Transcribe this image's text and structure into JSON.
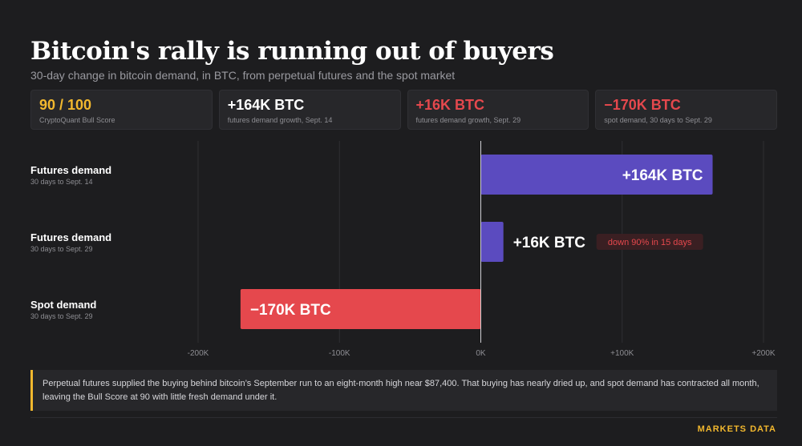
{
  "header": {
    "title": "Bitcoin's rally is running out of buyers",
    "subtitle": "30-day change in bitcoin demand, in BTC, from perpetual futures and the spot market"
  },
  "kpis": [
    {
      "value": "90 / 100",
      "label": "CryptoQuant Bull Score",
      "color": "#f2b82e"
    },
    {
      "value": "+164K BTC",
      "label": "futures demand growth, Sept. 14",
      "color": "#ffffff"
    },
    {
      "value": "+16K BTC",
      "label": "futures demand growth, Sept. 29",
      "color": "#e5484d"
    },
    {
      "value": "−170K BTC",
      "label": "spot demand, 30 days to Sept. 29",
      "color": "#e5484d"
    }
  ],
  "chart_data": {
    "type": "bar",
    "orientation": "horizontal",
    "categories": [
      {
        "name": "Futures demand",
        "sub": "30 days to Sept. 14"
      },
      {
        "name": "Futures demand",
        "sub": "30 days to Sept. 29"
      },
      {
        "name": "Spot demand",
        "sub": "30 days to Sept. 29"
      }
    ],
    "values": [
      164000,
      16000,
      -170000
    ],
    "value_labels": [
      "+164K BTC",
      "+16K BTC",
      "−170K BTC"
    ],
    "bar_colors": [
      "#5b4bbf",
      "#5b4bbf",
      "#e5484d"
    ],
    "xlim": [
      -200000,
      200000
    ],
    "xticks": [
      {
        "value": -200000,
        "label": "-200K"
      },
      {
        "value": -100000,
        "label": "-100K"
      },
      {
        "value": 0,
        "label": "0K"
      },
      {
        "value": 100000,
        "label": "+100K"
      },
      {
        "value": 200000,
        "label": "+200K"
      }
    ],
    "grid": true,
    "annotation": {
      "category_index": 1,
      "text": "down 90% in 15 days"
    }
  },
  "callout": {
    "text": "Perpetual futures supplied the buying behind bitcoin’s September run to an eight-month high near $87,400. That buying has nearly dried up, and spot demand has contracted all month, leaving the Bull Score at 90 with little fresh demand under it."
  },
  "footer": {
    "brand": "MARKETS DATA"
  },
  "colors": {
    "background": "#1d1d1f",
    "accent": "#f2b82e",
    "positive": "#5b4bbf",
    "negative": "#e5484d"
  }
}
